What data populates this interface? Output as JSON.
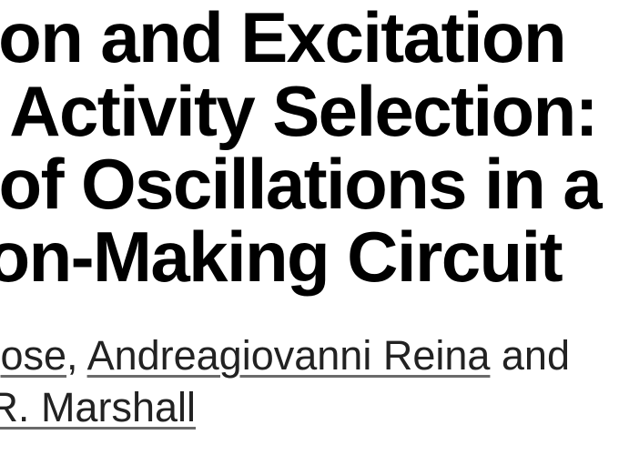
{
  "title": {
    "lines": [
      "tion and Excitation",
      "e Activity Selection:",
      "t of Oscillations in a",
      "ion-Making Circuit"
    ]
  },
  "authors": {
    "line1": {
      "author_a": "ose",
      "sep": ", ",
      "author_b": "Andreagiovanni Reina",
      "conj": " and"
    },
    "line2": {
      "author_c": "R. Marshall"
    }
  },
  "colors": {
    "title": "#000000",
    "author_text": "#222222",
    "link_underline": "#6a6a6a",
    "background": "#ffffff"
  }
}
